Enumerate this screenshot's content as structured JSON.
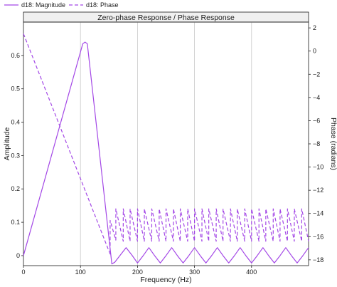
{
  "chart_data": {
    "type": "line",
    "title": "Zero-phase Response / Phase Response",
    "xlabel": "Frequency (Hz)",
    "ylabel_left": "Amplitude",
    "ylabel_right": "Phase (radians)",
    "xlim": [
      0,
      500
    ],
    "ylim_left": [
      -0.03,
      0.7
    ],
    "ylim_right": [
      -18.5,
      2.5
    ],
    "x_ticks": [
      0,
      100,
      200,
      300,
      400
    ],
    "y_left_ticks": [
      0,
      0.1,
      0.2,
      0.3,
      0.4,
      0.5,
      0.6
    ],
    "y_right_ticks": [
      2,
      0,
      -2,
      -4,
      -6,
      -8,
      -10,
      -12,
      -14,
      -16,
      -18
    ],
    "grid": "vertical",
    "legend_position": "top-left",
    "colors": {
      "series": "#a347e6",
      "frame": "#1a1a1a",
      "grid": "#c8c8c8"
    },
    "series": [
      {
        "name": "d18: Magnitude",
        "axis": "left",
        "style": "solid",
        "x": [
          0,
          104,
          108,
          112,
          155,
          160,
          170,
          180,
          190,
          200,
          210,
          220,
          230,
          240,
          250,
          260,
          270,
          280,
          290,
          300,
          310,
          320,
          330,
          340,
          350,
          360,
          370,
          380,
          390,
          400,
          410,
          420,
          430,
          440,
          450,
          460,
          470,
          480,
          490,
          500
        ],
        "values": [
          0.0,
          0.635,
          0.64,
          0.635,
          -0.025,
          -0.02,
          0.002,
          0.024,
          0.002,
          -0.022,
          0.0,
          0.024,
          0.0,
          -0.022,
          0.0,
          0.024,
          0.0,
          -0.022,
          0.0,
          0.024,
          0.0,
          -0.022,
          0.0,
          0.024,
          0.0,
          -0.022,
          0.0,
          0.024,
          0.0,
          -0.022,
          0.0,
          0.024,
          0.0,
          -0.022,
          0.0,
          0.024,
          0.0,
          -0.022,
          0.0,
          0.024
        ]
      },
      {
        "name": "d18: Phase",
        "axis": "right",
        "style": "dashed",
        "x": [
          0,
          152,
          152,
          162,
          162,
          175,
          175,
          187,
          187,
          200,
          200,
          212,
          212,
          225,
          225,
          238,
          238,
          250,
          250,
          263,
          263,
          275,
          275,
          288,
          288,
          300,
          300,
          313,
          313,
          325,
          325,
          338,
          338,
          350,
          350,
          363,
          363,
          375,
          375,
          388,
          388,
          400,
          400,
          413,
          413,
          425,
          425,
          438,
          438,
          450,
          450,
          463,
          463,
          475,
          475,
          488,
          488,
          500
        ],
        "values": [
          1.5,
          -17.5,
          -14.6,
          -16.3,
          -13.6,
          -16.4,
          -13.6,
          -16.4,
          -13.6,
          -16.4,
          -13.6,
          -16.4,
          -13.6,
          -16.4,
          -13.6,
          -16.4,
          -13.6,
          -16.4,
          -13.6,
          -16.4,
          -13.6,
          -16.4,
          -13.6,
          -16.4,
          -13.6,
          -16.4,
          -13.6,
          -16.4,
          -13.6,
          -16.4,
          -13.6,
          -16.4,
          -13.6,
          -16.4,
          -13.6,
          -16.4,
          -13.6,
          -16.4,
          -13.6,
          -16.4,
          -13.6,
          -16.4,
          -13.6,
          -16.4,
          -13.6,
          -16.4,
          -13.6,
          -16.4,
          -13.6,
          -16.4,
          -13.6,
          -16.4,
          -13.6,
          -16.4,
          -13.6,
          -16.4,
          -13.6,
          -16.4
        ]
      }
    ]
  }
}
